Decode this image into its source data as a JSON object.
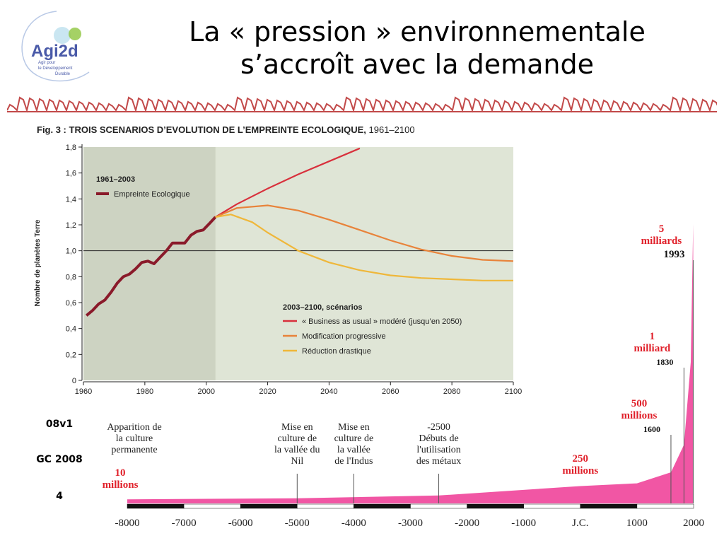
{
  "slide": {
    "title_line1": "La « pression » environnementale",
    "title_line2": "s’accroît avec la demande",
    "logo_text": "Agi2d",
    "logo_sub1": "Agir pour",
    "logo_sub2": "le Développement",
    "logo_sub3": "Durable",
    "footer": [
      "08v1",
      "GC 2008",
      "4"
    ]
  },
  "colors": {
    "historical": "#8a1a2a",
    "bau": "#d8303c",
    "progressive": "#e8833a",
    "drastic": "#efb73a",
    "shade_dark": "#cdd3c2",
    "shade_light": "#dfe5d6",
    "pink": "#f0449a",
    "red_text": "#e0202a"
  },
  "chart_data": [
    {
      "type": "line",
      "title_prefix": "Fig. 3 :",
      "title": "TROIS SCENARIOS D’EVOLUTION DE L’EMPREINTE ECOLOGIQUE,",
      "title_suffix": "1961–2100",
      "xlabel": "",
      "ylabel": "Nombre de planètes Terre",
      "xlim": [
        1960,
        2100
      ],
      "ylim": [
        0,
        1.8
      ],
      "x_ticks": [
        "1960",
        "1980",
        "2000",
        "2020",
        "2040",
        "2060",
        "2080",
        "2100"
      ],
      "y_ticks": [
        "0",
        "0,2",
        "0,4",
        "0,6",
        "0,8",
        "1,0",
        "1,2",
        "1,4",
        "1,6",
        "1,8"
      ],
      "reference_line": 1.0,
      "legend_hist_title": "1961–2003",
      "legend_scen_title": "2003–2100, scénarios",
      "series": [
        {
          "name": "Empreinte Ecologique",
          "key": "historical",
          "x": [
            1961,
            1963,
            1965,
            1967,
            1969,
            1971,
            1973,
            1975,
            1977,
            1979,
            1981,
            1983,
            1985,
            1987,
            1989,
            1991,
            1993,
            1995,
            1997,
            1999,
            2001,
            2003
          ],
          "y": [
            0.5,
            0.54,
            0.59,
            0.62,
            0.68,
            0.75,
            0.8,
            0.82,
            0.86,
            0.91,
            0.92,
            0.9,
            0.95,
            1.0,
            1.06,
            1.06,
            1.06,
            1.12,
            1.15,
            1.16,
            1.21,
            1.26
          ]
        },
        {
          "name": "« Business as usual » modéré (jusqu’en 2050)",
          "key": "bau",
          "x": [
            2003,
            2010,
            2020,
            2030,
            2040,
            2050
          ],
          "y": [
            1.26,
            1.36,
            1.48,
            1.59,
            1.69,
            1.79
          ]
        },
        {
          "name": "Modification progressive",
          "key": "progressive",
          "x": [
            2003,
            2010,
            2020,
            2030,
            2040,
            2050,
            2060,
            2070,
            2080,
            2090,
            2100
          ],
          "y": [
            1.26,
            1.33,
            1.35,
            1.31,
            1.24,
            1.16,
            1.08,
            1.01,
            0.96,
            0.93,
            0.92
          ]
        },
        {
          "name": "Réduction drastique",
          "key": "drastic",
          "x": [
            2003,
            2008,
            2015,
            2020,
            2030,
            2040,
            2050,
            2060,
            2070,
            2080,
            2090,
            2100
          ],
          "y": [
            1.26,
            1.28,
            1.22,
            1.14,
            1.0,
            0.91,
            0.85,
            0.81,
            0.79,
            0.78,
            0.77,
            0.77
          ]
        }
      ]
    },
    {
      "type": "area",
      "title": "",
      "x_ticks": [
        "-8000",
        "-7000",
        "-6000",
        "-5000",
        "-4000",
        "-3000",
        "-2000",
        "-1000",
        "J.C.",
        "1000",
        "2000"
      ],
      "annotations": [
        {
          "x": -8000,
          "lines": [
            "Apparition de",
            "la culture",
            "permanente"
          ],
          "kind": "event"
        },
        {
          "x": -5000,
          "lines": [
            "Mise en",
            "culture de",
            "la vallée du",
            "Nil"
          ],
          "kind": "event"
        },
        {
          "x": -4000,
          "lines": [
            "Mise en",
            "culture de",
            "la vallée",
            "de l'Indus"
          ],
          "kind": "event"
        },
        {
          "x": -2500,
          "lines": [
            "-2500",
            "Débuts de",
            "l'utilisation",
            "des métaux"
          ],
          "kind": "event"
        },
        {
          "x": -8000,
          "lines": [
            "10",
            "millions"
          ],
          "kind": "population"
        },
        {
          "x": 0,
          "lines": [
            "250",
            "millions"
          ],
          "kind": "population"
        },
        {
          "x": 1600,
          "lines": [
            "500",
            "millions"
          ],
          "year": "1600",
          "kind": "population"
        },
        {
          "x": 1830,
          "lines": [
            "1",
            "milliard"
          ],
          "year": "1830",
          "kind": "population"
        },
        {
          "x": 1993,
          "lines": [
            "5",
            "milliards"
          ],
          "year": "1993",
          "kind": "population"
        }
      ],
      "series": [
        {
          "name": "",
          "x": [
            -8000,
            -5000,
            -2500,
            0,
            1000,
            1600,
            1830,
            1950,
            1993
          ],
          "y": [
            0.01,
            0.03,
            0.08,
            0.25,
            0.3,
            0.5,
            1.0,
            2.5,
            5.0
          ]
        }
      ]
    }
  ]
}
